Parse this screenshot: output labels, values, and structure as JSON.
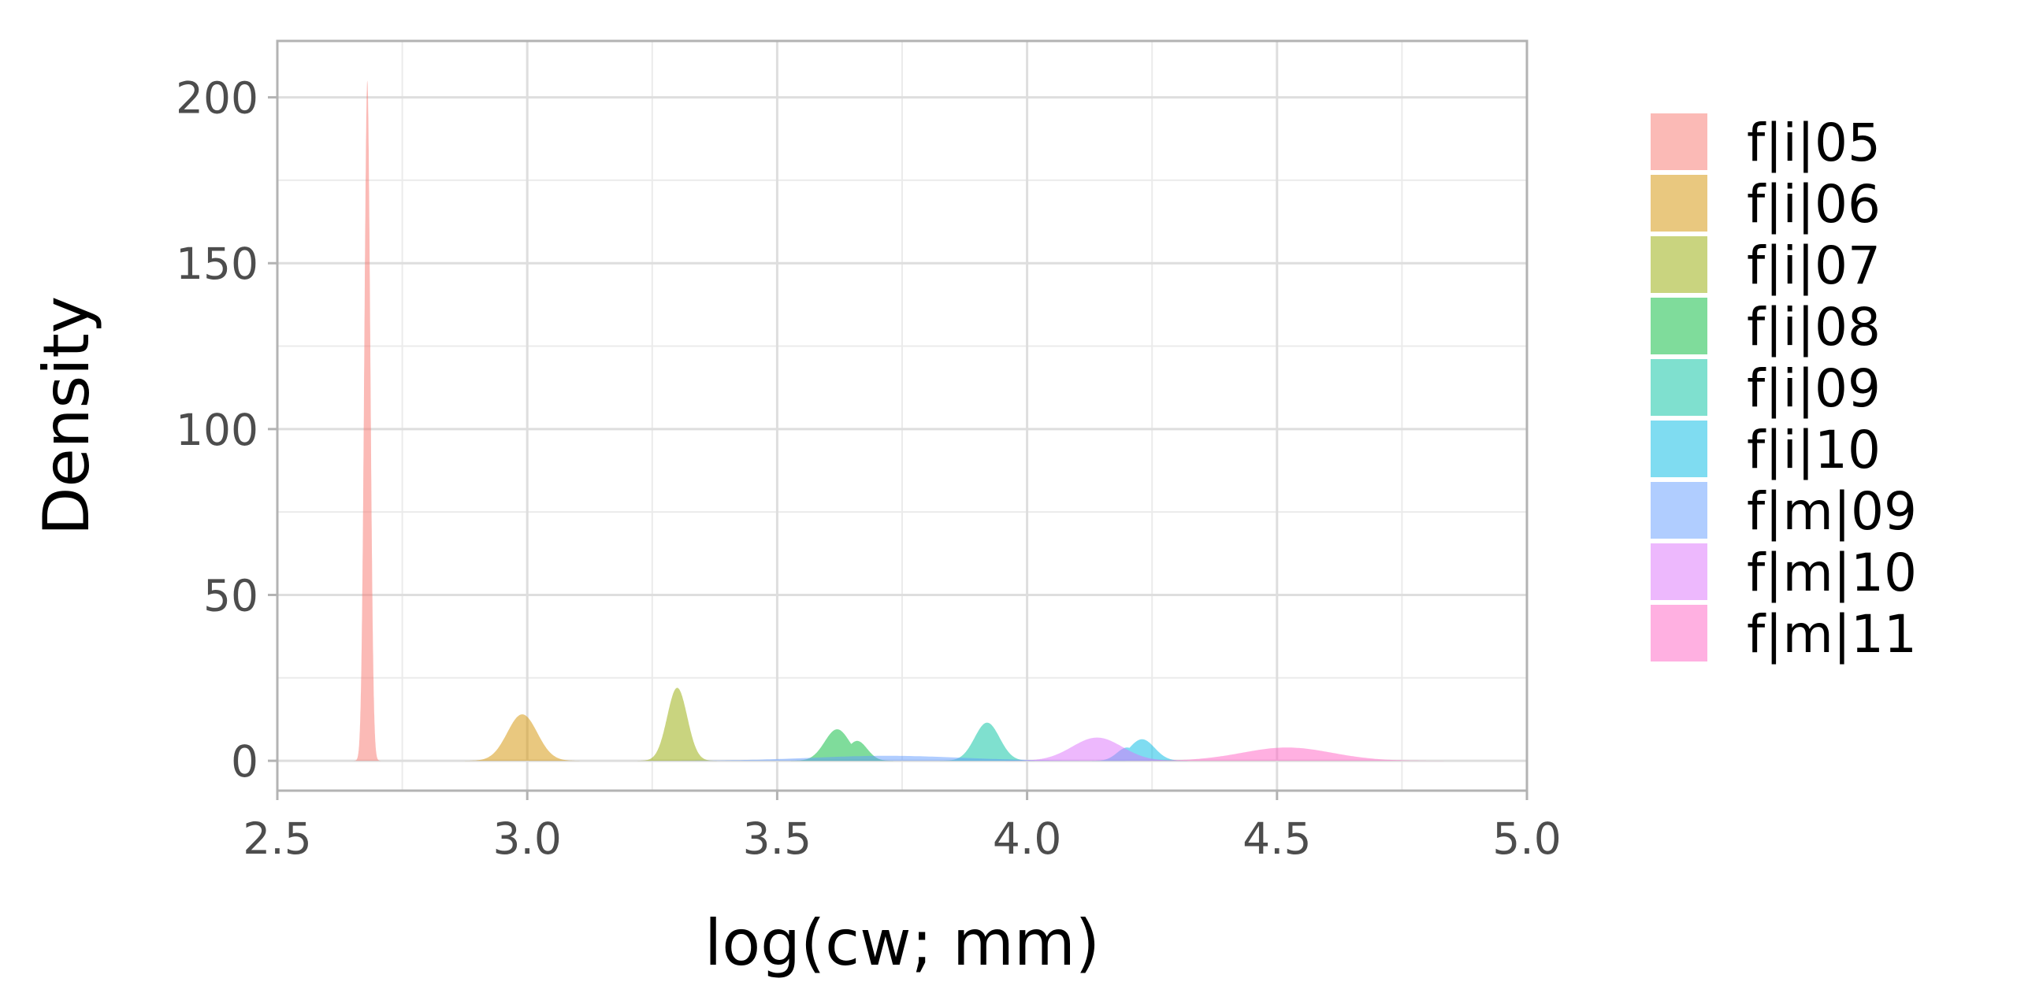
{
  "chart_data": {
    "type": "area",
    "title": "",
    "xlabel": "log(cw; mm)",
    "ylabel": "Density",
    "xlim": [
      2.5,
      5.0
    ],
    "ylim": [
      -9,
      217
    ],
    "x_ticks": [
      "2.5",
      "3.0",
      "3.5",
      "4.0",
      "4.5",
      "5.0"
    ],
    "y_ticks": [
      "0",
      "50",
      "100",
      "150",
      "200"
    ],
    "grid": true,
    "legend_position": "right",
    "series": [
      {
        "name": "f|i|05",
        "color": "#F8766D",
        "peaks": [
          {
            "center": 2.68,
            "width": 0.006,
            "height": 205
          }
        ]
      },
      {
        "name": "f|i|06",
        "color": "#D39200",
        "peaks": [
          {
            "center": 2.99,
            "width": 0.03,
            "height": 14
          }
        ]
      },
      {
        "name": "f|i|07",
        "color": "#93AA00",
        "peaks": [
          {
            "center": 3.3,
            "width": 0.02,
            "height": 22
          }
        ]
      },
      {
        "name": "f|i|08",
        "color": "#00BA38",
        "peaks": [
          {
            "center": 3.62,
            "width": 0.025,
            "height": 9.5
          },
          {
            "center": 3.66,
            "width": 0.02,
            "height": 6
          }
        ]
      },
      {
        "name": "f|i|09",
        "color": "#00C19F",
        "peaks": [
          {
            "center": 3.92,
            "width": 0.025,
            "height": 11.5
          }
        ]
      },
      {
        "name": "f|i|10",
        "color": "#00B9E3",
        "peaks": [
          {
            "center": 4.23,
            "width": 0.025,
            "height": 6.5
          },
          {
            "center": 4.2,
            "width": 0.02,
            "height": 4
          }
        ]
      },
      {
        "name": "f|m|09",
        "color": "#619CFF",
        "peaks": [
          {
            "center": 3.72,
            "width": 0.15,
            "height": 1.5
          }
        ]
      },
      {
        "name": "f|m|10",
        "color": "#DB72FB",
        "peaks": [
          {
            "center": 4.14,
            "width": 0.05,
            "height": 7
          }
        ]
      },
      {
        "name": "f|m|11",
        "color": "#FF61C3",
        "peaks": [
          {
            "center": 4.52,
            "width": 0.09,
            "height": 4
          }
        ]
      }
    ]
  }
}
